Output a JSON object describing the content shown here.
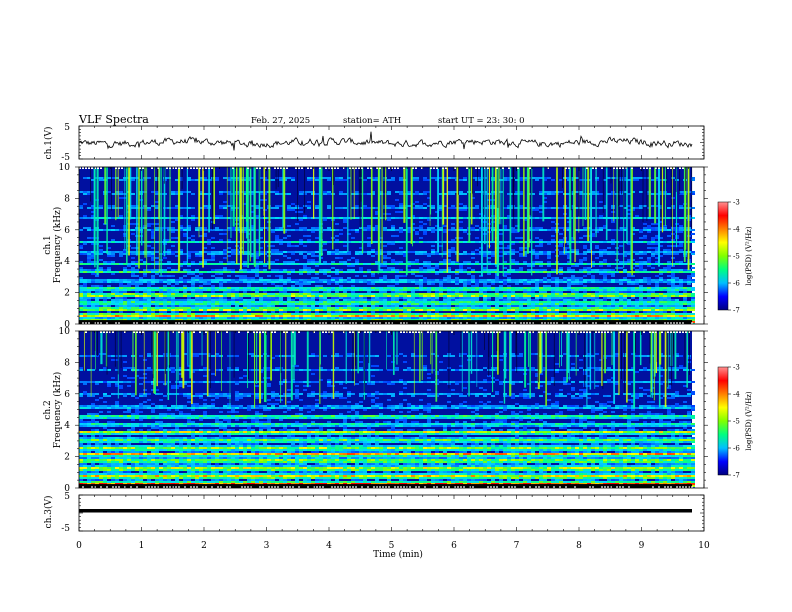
{
  "header": {
    "title": "VLF  Spectra",
    "date": "Feb. 27, 2025",
    "station": "station= ATH",
    "start": "start  UT  =    23: 30: 0"
  },
  "colors": {
    "colormap": [
      "#000080",
      "#0000ff",
      "#00bfff",
      "#00ff80",
      "#80ff00",
      "#ffff00",
      "#ff8000",
      "#ff0000",
      "#ff9090",
      "#ffffff"
    ]
  },
  "chart_data": [
    {
      "type": "line",
      "panel": "ch1",
      "ylabel": "ch.1(V)",
      "ylim": [
        -5,
        5
      ],
      "yticks": [
        "5",
        "-5"
      ],
      "series": [
        {
          "name": "",
          "values_description_hidden": null
        }
      ],
      "approx_level": 0
    },
    {
      "type": "heatmap",
      "panel": "ch1_spectrum",
      "ylabel_lines": [
        "ch.1",
        "Frequency  (kHz)"
      ],
      "ylim": [
        0,
        10
      ],
      "yticks": [
        "0",
        "2",
        "4",
        "6",
        "8",
        "10"
      ],
      "colorbar": {
        "label": "log(PSD) (V²/Hz)",
        "range": [
          -7,
          -3
        ],
        "ticks": [
          "-3",
          "-4",
          "-5",
          "-6",
          "-7"
        ]
      }
    },
    {
      "type": "heatmap",
      "panel": "ch2_spectrum",
      "ylabel_lines": [
        "ch.2",
        "Frequency  (kHz)"
      ],
      "ylim": [
        0,
        10
      ],
      "yticks": [
        "0",
        "2",
        "4",
        "6",
        "8",
        "10"
      ],
      "colorbar": {
        "label": "log(PSD) (V²/Hz)",
        "range": [
          -7,
          -3
        ],
        "ticks": [
          "-3",
          "-4",
          "-5",
          "-6",
          "-7"
        ]
      }
    },
    {
      "type": "line",
      "panel": "ch3",
      "ylabel": "ch.3(V)",
      "ylim": [
        -5,
        5
      ],
      "yticks": [
        "5",
        "-5"
      ],
      "approx_level": 0
    }
  ],
  "xaxis": {
    "xlabel": "Time  (min)",
    "xlim": [
      0,
      10
    ],
    "ticks": [
      "0",
      "1",
      "2",
      "3",
      "4",
      "5",
      "6",
      "7",
      "8",
      "9",
      "10"
    ]
  }
}
